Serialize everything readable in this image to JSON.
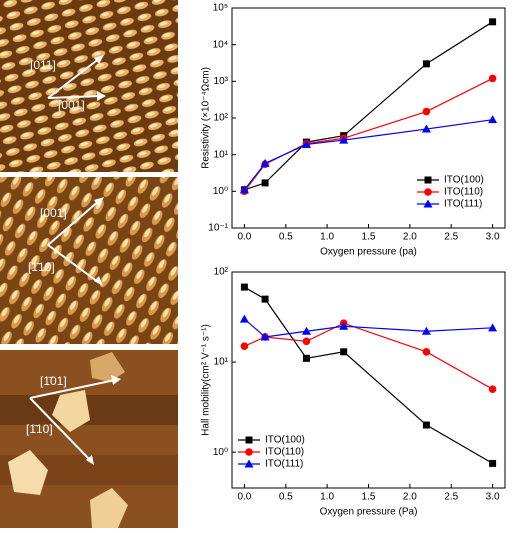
{
  "images": [
    {
      "labels": [
        "[011]",
        "[001]"
      ]
    },
    {
      "labels": [
        "[001]",
        "[1̄10]"
      ]
    },
    {
      "labels": [
        "[1̄01]",
        "[1̄10]"
      ]
    }
  ],
  "chart_data": [
    {
      "type": "line",
      "log_y": true,
      "legend": "lower right",
      "ylabel": "Resistivity (×10⁻⁴Ωcm)",
      "xlabel": "Oxygen pressure (pa)",
      "x": [
        0,
        0.25,
        0.75,
        1.2,
        2.2,
        3.0
      ],
      "xlim": [
        -0.15,
        3.15
      ],
      "xticks": [
        {
          "value": 0,
          "label": "0.0"
        },
        {
          "value": 0.5,
          "label": "0.5"
        },
        {
          "value": 1,
          "label": "1.0"
        },
        {
          "value": 1.5,
          "label": "1.5"
        },
        {
          "value": 2,
          "label": "2.0"
        },
        {
          "value": 2.5,
          "label": "2.5"
        },
        {
          "value": 3,
          "label": "3.0"
        }
      ],
      "ylim": [
        0.1,
        100000
      ],
      "yticks": [
        {
          "value": 0.1,
          "label": "10⁻¹"
        },
        {
          "value": 1,
          "label": "10⁰"
        },
        {
          "value": 10,
          "label": "10¹"
        },
        {
          "value": 100,
          "label": "10²"
        },
        {
          "value": 1000,
          "label": "10³"
        },
        {
          "value": 10000,
          "label": "10⁴"
        },
        {
          "value": 100000,
          "label": "10⁵"
        }
      ],
      "series": [
        {
          "name": "ITO(100)",
          "color": "#000000",
          "marker": "square",
          "values": [
            1.1,
            1.7,
            22,
            33,
            3000,
            42000
          ]
        },
        {
          "name": "ITO(110)",
          "color": "#ff0000",
          "marker": "circle",
          "values": [
            1.0,
            5.5,
            20,
            28,
            150,
            1200
          ]
        },
        {
          "name": "ITO(111)",
          "color": "#0000ff",
          "marker": "triangle",
          "values": [
            1.1,
            5.8,
            19,
            25,
            50,
            90
          ]
        }
      ]
    },
    {
      "type": "line",
      "log_y": true,
      "legend": "lower left",
      "ylabel": "Hall mobility(cm² V⁻¹ s⁻¹)",
      "xlabel": "Oxygen pressure (Pa)",
      "x": [
        0,
        0.25,
        0.75,
        1.2,
        2.2,
        3.0
      ],
      "xlim": [
        -0.15,
        3.15
      ],
      "xticks": [
        {
          "value": 0,
          "label": "0.0"
        },
        {
          "value": 0.5,
          "label": "0.5"
        },
        {
          "value": 1,
          "label": "1.0"
        },
        {
          "value": 1.5,
          "label": "1.5"
        },
        {
          "value": 2,
          "label": "2.0"
        },
        {
          "value": 2.5,
          "label": "2.5"
        },
        {
          "value": 3,
          "label": "3.0"
        }
      ],
      "ylim": [
        0.4,
        100
      ],
      "yticks": [
        {
          "value": 1,
          "label": "10⁰"
        },
        {
          "value": 10,
          "label": "10¹"
        },
        {
          "value": 100,
          "label": "10²"
        }
      ],
      "series": [
        {
          "name": "ITO(100)",
          "color": "#000000",
          "marker": "square",
          "values": [
            68,
            50,
            11,
            13,
            2,
            0.75
          ]
        },
        {
          "name": "ITO(110)",
          "color": "#ff0000",
          "marker": "circle",
          "values": [
            15,
            19,
            17,
            27,
            13,
            5
          ]
        },
        {
          "name": "ITO(111)",
          "color": "#0000ff",
          "marker": "triangle",
          "values": [
            30,
            19,
            22,
            25,
            22,
            24
          ]
        }
      ]
    }
  ]
}
